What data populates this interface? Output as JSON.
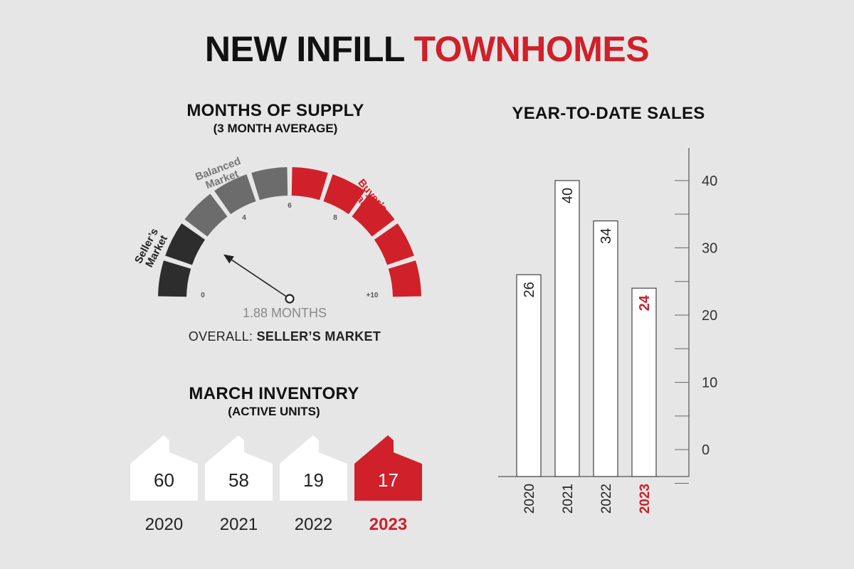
{
  "title": {
    "part1": "NEW INFILL",
    "part2": "TOWNHOMES"
  },
  "colors": {
    "accent": "#d0202a",
    "dark": "#2d2d2d",
    "mid": "#6c6c6c",
    "bg": "#e6e6e6"
  },
  "supply": {
    "title": "MONTHS OF SUPPLY",
    "subtitle": "(3 MONTH AVERAGE)",
    "reading": "1.88 MONTHS",
    "overall_label": "OVERALL:",
    "overall_value": "SELLER’S MARKET"
  },
  "gauge": {
    "value": 1.88,
    "min": 0,
    "max": 10,
    "ticks": [
      "0",
      "4",
      "6",
      "8",
      "+10"
    ],
    "zones": [
      {
        "line1": "Seller’s",
        "line2": "Market"
      },
      {
        "line1": "Balanced",
        "line2": "Market"
      },
      {
        "line1": "Buyer’s",
        "line2": "Market"
      }
    ]
  },
  "inventory": {
    "title": "MARCH INVENTORY",
    "subtitle": "(ACTIVE UNITS)",
    "items": [
      {
        "year": "2020",
        "value": "60"
      },
      {
        "year": "2021",
        "value": "58"
      },
      {
        "year": "2022",
        "value": "19"
      },
      {
        "year": "2023",
        "value": "17"
      }
    ]
  },
  "sales": {
    "title": "YEAR-TO-DATE SALES"
  },
  "chart_data": {
    "type": "bar",
    "title": "YEAR-TO-DATE SALES",
    "categories": [
      "2020",
      "2021",
      "2022",
      "2023"
    ],
    "values": [
      26,
      40,
      34,
      24
    ],
    "yticks": [
      0,
      10,
      20,
      30,
      40
    ],
    "ylim": [
      -4,
      44
    ],
    "highlight": "2023",
    "grid": false
  }
}
